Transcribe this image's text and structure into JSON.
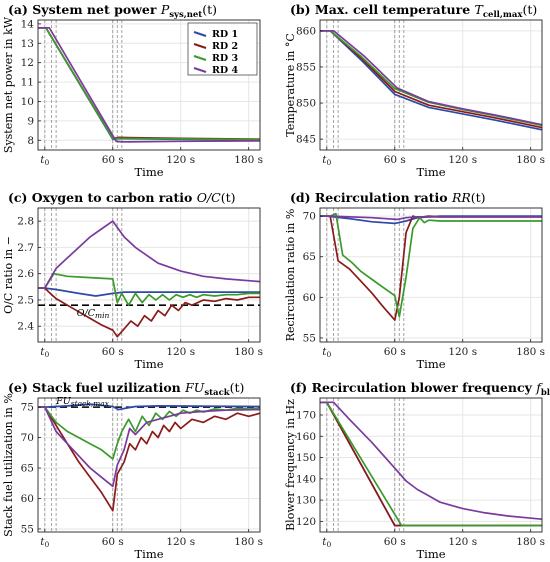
{
  "figure": {
    "x_ticks": [
      "t0",
      "60 s",
      "120 s",
      "180 s"
    ],
    "x_tick_values": [
      0,
      60,
      120,
      180
    ],
    "xlim": [
      -6,
      190
    ],
    "vlines": [
      0,
      6,
      10,
      60,
      64,
      68
    ],
    "legend": [
      "RD 1",
      "RD 2",
      "RD 3",
      "RD 4"
    ],
    "colors": {
      "RD 1": "#2e4aa8",
      "RD 2": "#8b1a1a",
      "RD 3": "#3a9a2a",
      "RD 4": "#7a3a9e",
      "grid": "#e6e6e6",
      "vline": "#9a9a9a"
    }
  },
  "chart_data": [
    {
      "id": "a",
      "type": "line",
      "label": "(a)",
      "title": "System net power",
      "symbol": "P",
      "symbol_sub": "sys,net",
      "xlabel": "Time",
      "ylabel": "System net power in kW",
      "ylim": [
        7.5,
        14.2
      ],
      "yticks": [
        8,
        9,
        10,
        11,
        12,
        13,
        14
      ],
      "legend_position": "top-right",
      "series": [
        {
          "name": "RD 1",
          "color": "#2e4aa8",
          "x": [
            -6,
            1,
            60,
            65,
            120,
            190
          ],
          "y": [
            13.8,
            13.8,
            8.05,
            8.08,
            8.05,
            8.02
          ]
        },
        {
          "name": "RD 2",
          "color": "#8b1a1a",
          "x": [
            -6,
            1,
            60,
            65,
            120,
            190
          ],
          "y": [
            13.8,
            13.8,
            8.1,
            8.15,
            8.1,
            8.06
          ]
        },
        {
          "name": "RD 3",
          "color": "#3a9a2a",
          "x": [
            -6,
            1,
            60,
            65,
            120,
            190
          ],
          "y": [
            13.8,
            13.8,
            8.08,
            8.1,
            8.07,
            8.04
          ]
        },
        {
          "name": "RD 4",
          "color": "#7a3a9e",
          "x": [
            -6,
            4,
            63,
            68,
            120,
            190
          ],
          "y": [
            13.8,
            13.8,
            7.95,
            7.92,
            7.95,
            7.97
          ]
        }
      ]
    },
    {
      "id": "b",
      "type": "line",
      "label": "(b)",
      "title": "Max. cell temperature",
      "symbol": "T",
      "symbol_sub": "cell,max",
      "xlabel": "Time",
      "ylabel": "Temperature in °C",
      "ylim": [
        843.5,
        861.5
      ],
      "yticks": [
        845,
        850,
        855,
        860
      ],
      "series": [
        {
          "name": "RD 1",
          "color": "#2e4aa8",
          "x": [
            -6,
            3,
            30,
            60,
            90,
            120,
            150,
            190
          ],
          "y": [
            860,
            860,
            856,
            851.2,
            849.4,
            848.5,
            847.6,
            846.3
          ]
        },
        {
          "name": "RD 2",
          "color": "#8b1a1a",
          "x": [
            -6,
            3,
            30,
            60,
            90,
            120,
            150,
            190
          ],
          "y": [
            860,
            860,
            856.3,
            851.6,
            849.7,
            848.8,
            847.9,
            846.6
          ]
        },
        {
          "name": "RD 3",
          "color": "#3a9a2a",
          "x": [
            -6,
            3,
            30,
            60,
            90,
            120,
            150,
            190
          ],
          "y": [
            860,
            860,
            856.5,
            852,
            850.1,
            849.1,
            848.2,
            846.9
          ]
        },
        {
          "name": "RD 4",
          "color": "#7a3a9e",
          "x": [
            -6,
            6,
            33,
            62,
            90,
            120,
            150,
            190
          ],
          "y": [
            860,
            860,
            856.5,
            852.1,
            850.2,
            849.2,
            848.3,
            847
          ]
        }
      ]
    },
    {
      "id": "c",
      "type": "line",
      "label": "(c)",
      "title": "Oxygen to carbon ratio",
      "symbol": "O/C",
      "symbol_sub": "",
      "xlabel": "Time",
      "ylabel": "O/C ratio in −",
      "ylim": [
        2.34,
        2.85
      ],
      "yticks": [
        2.4,
        2.5,
        2.6,
        2.7,
        2.8
      ],
      "hline": 2.48,
      "hline_label": "O/C",
      "hline_sub": "min",
      "series": [
        {
          "name": "RD 1",
          "color": "#2e4aa8",
          "x": [
            -6,
            0,
            10,
            30,
            45,
            60,
            70,
            100,
            190
          ],
          "y": [
            2.545,
            2.545,
            2.54,
            2.525,
            2.515,
            2.525,
            2.53,
            2.53,
            2.53
          ]
        },
        {
          "name": "RD 2",
          "color": "#8b1a1a",
          "x": [
            -6,
            0,
            6,
            10,
            20,
            30,
            40,
            50,
            60,
            64,
            70,
            76,
            82,
            88,
            94,
            100,
            106,
            112,
            118,
            124,
            130,
            140,
            150,
            160,
            170,
            180,
            190
          ],
          "y": [
            2.545,
            2.545,
            2.52,
            2.505,
            2.48,
            2.455,
            2.43,
            2.405,
            2.385,
            2.36,
            2.39,
            2.42,
            2.4,
            2.44,
            2.42,
            2.46,
            2.44,
            2.48,
            2.46,
            2.49,
            2.48,
            2.5,
            2.495,
            2.505,
            2.5,
            2.51,
            2.51
          ]
        },
        {
          "name": "RD 3",
          "color": "#3a9a2a",
          "x": [
            -6,
            0,
            8,
            20,
            40,
            60,
            64,
            68,
            74,
            80,
            86,
            92,
            98,
            104,
            110,
            116,
            122,
            128,
            134,
            140,
            150,
            160,
            170,
            180,
            190
          ],
          "y": [
            2.545,
            2.545,
            2.6,
            2.59,
            2.585,
            2.58,
            2.49,
            2.525,
            2.48,
            2.525,
            2.49,
            2.52,
            2.5,
            2.52,
            2.5,
            2.52,
            2.51,
            2.52,
            2.51,
            2.52,
            2.515,
            2.52,
            2.52,
            2.525,
            2.525
          ]
        },
        {
          "name": "RD 4",
          "color": "#7a3a9e",
          "x": [
            -6,
            0,
            10,
            20,
            30,
            40,
            50,
            60,
            70,
            80,
            90,
            100,
            120,
            140,
            160,
            190
          ],
          "y": [
            2.545,
            2.545,
            2.62,
            2.66,
            2.7,
            2.74,
            2.77,
            2.8,
            2.74,
            2.7,
            2.67,
            2.64,
            2.61,
            2.59,
            2.58,
            2.57
          ]
        }
      ]
    },
    {
      "id": "d",
      "type": "line",
      "label": "(d)",
      "title": "Recirculation ratio",
      "symbol": "RR",
      "symbol_sub": "",
      "xlabel": "Time",
      "ylabel": "Recirculation ratio in %",
      "ylim": [
        54.5,
        71
      ],
      "yticks": [
        55,
        60,
        65,
        70
      ],
      "series": [
        {
          "name": "RD 1",
          "color": "#2e4aa8",
          "x": [
            -6,
            0,
            20,
            40,
            60,
            70,
            80,
            100,
            190
          ],
          "y": [
            70,
            70,
            69.7,
            69.3,
            69.1,
            69.4,
            69.8,
            70,
            70
          ]
        },
        {
          "name": "RD 2",
          "color": "#8b1a1a",
          "x": [
            -6,
            3,
            10,
            20,
            30,
            40,
            50,
            60,
            64,
            70,
            76,
            80,
            90,
            100,
            190
          ],
          "y": [
            70,
            70,
            64.5,
            63.5,
            62,
            60.5,
            58.8,
            57.2,
            60,
            68,
            70,
            69.8,
            70,
            69.9,
            69.9
          ]
        },
        {
          "name": "RD 3",
          "color": "#3a9a2a",
          "x": [
            -6,
            3,
            8,
            14,
            22,
            30,
            40,
            50,
            60,
            64,
            70,
            76,
            82,
            86,
            90,
            100,
            190
          ],
          "y": [
            70,
            70,
            70.3,
            65.2,
            64.3,
            63.2,
            62.2,
            61.2,
            60.2,
            57.6,
            62.5,
            68.5,
            69.8,
            69.2,
            69.5,
            69.4,
            69.4
          ]
        },
        {
          "name": "RD 4",
          "color": "#7a3a9e",
          "x": [
            -6,
            3,
            40,
            62,
            70,
            80,
            190
          ],
          "y": [
            70,
            70,
            69.8,
            69.6,
            69.8,
            69.9,
            69.9
          ]
        }
      ]
    },
    {
      "id": "e",
      "type": "line",
      "label": "(e)",
      "title": "Stack fuel uzilization",
      "symbol": "FU",
      "symbol_sub": "stack",
      "xlabel": "Time",
      "ylabel": "Stack fuel utilization in %",
      "ylim": [
        54.5,
        76.5
      ],
      "yticks": [
        55,
        60,
        65,
        70,
        75
      ],
      "hline": 75,
      "hline_label": "FU",
      "hline_sub": "stack,max",
      "series": [
        {
          "name": "RD 1",
          "color": "#2e4aa8",
          "x": [
            -6,
            0,
            20,
            40,
            60,
            65,
            80,
            100,
            190
          ],
          "y": [
            75,
            75,
            75.2,
            75.5,
            75.1,
            74.6,
            75.1,
            75.2,
            75.1
          ]
        },
        {
          "name": "RD 2",
          "color": "#8b1a1a",
          "x": [
            -6,
            0,
            10,
            20,
            30,
            40,
            50,
            60,
            64,
            70,
            75,
            80,
            85,
            90,
            95,
            100,
            105,
            110,
            115,
            120,
            130,
            140,
            150,
            160,
            170,
            180,
            190
          ],
          "y": [
            75,
            75,
            72,
            69,
            66,
            63.5,
            61,
            58,
            64,
            66,
            69,
            68,
            70,
            69,
            71,
            70,
            72,
            71,
            72.5,
            71.5,
            73,
            72.5,
            73.5,
            73,
            74,
            73.5,
            74
          ]
        },
        {
          "name": "RD 3",
          "color": "#3a9a2a",
          "x": [
            -6,
            0,
            10,
            20,
            30,
            40,
            50,
            60,
            64,
            68,
            74,
            80,
            86,
            92,
            98,
            104,
            110,
            116,
            122,
            128,
            134,
            140,
            150,
            160,
            170,
            180,
            190
          ],
          "y": [
            75,
            75,
            72.5,
            71,
            70,
            69,
            68,
            66.5,
            69,
            71,
            73,
            71,
            73.5,
            72,
            74,
            73,
            74.3,
            73.5,
            74.5,
            74,
            74.5,
            74.2,
            74.7,
            74.5,
            74.8,
            74.7,
            74.8
          ]
        },
        {
          "name": "RD 4",
          "color": "#7a3a9e",
          "x": [
            -6,
            0,
            10,
            20,
            30,
            40,
            50,
            60,
            64,
            70,
            75,
            80,
            90,
            100,
            110,
            120,
            140,
            160,
            190
          ],
          "y": [
            75,
            75,
            71,
            69,
            67,
            65,
            63.5,
            62,
            65.5,
            68,
            71.5,
            70.5,
            72.5,
            73,
            73.5,
            74,
            74.3,
            74.5,
            74.6
          ]
        }
      ]
    },
    {
      "id": "f",
      "type": "line",
      "label": "(f)",
      "title": "Recirculation blower frequency",
      "symbol": "f",
      "symbol_sub": "bl,rec",
      "xlabel": "Time",
      "ylabel": "Blower frequency in Hz",
      "ylim": [
        115,
        178
      ],
      "yticks": [
        120,
        130,
        140,
        150,
        160,
        170
      ],
      "series": [
        {
          "name": "RD 1",
          "color": "#2e4aa8",
          "x": [
            -6,
            0,
            60,
            66,
            190
          ],
          "y": [
            176,
            176,
            118,
            118,
            118
          ]
        },
        {
          "name": "RD 2",
          "color": "#8b1a1a",
          "x": [
            -6,
            0,
            60,
            66,
            190
          ],
          "y": [
            176,
            176,
            118,
            118,
            118
          ]
        },
        {
          "name": "RD 3",
          "color": "#3a9a2a",
          "x": [
            -6,
            0,
            66,
            70,
            190
          ],
          "y": [
            176,
            176,
            118,
            118,
            118
          ]
        },
        {
          "name": "RD 4",
          "color": "#7a3a9e",
          "x": [
            -6,
            6,
            20,
            40,
            60,
            70,
            80,
            90,
            100,
            120,
            140,
            160,
            190
          ],
          "y": [
            176,
            176,
            168,
            157,
            145,
            139,
            135,
            132,
            129,
            126,
            124,
            122.5,
            121
          ]
        }
      ]
    }
  ]
}
